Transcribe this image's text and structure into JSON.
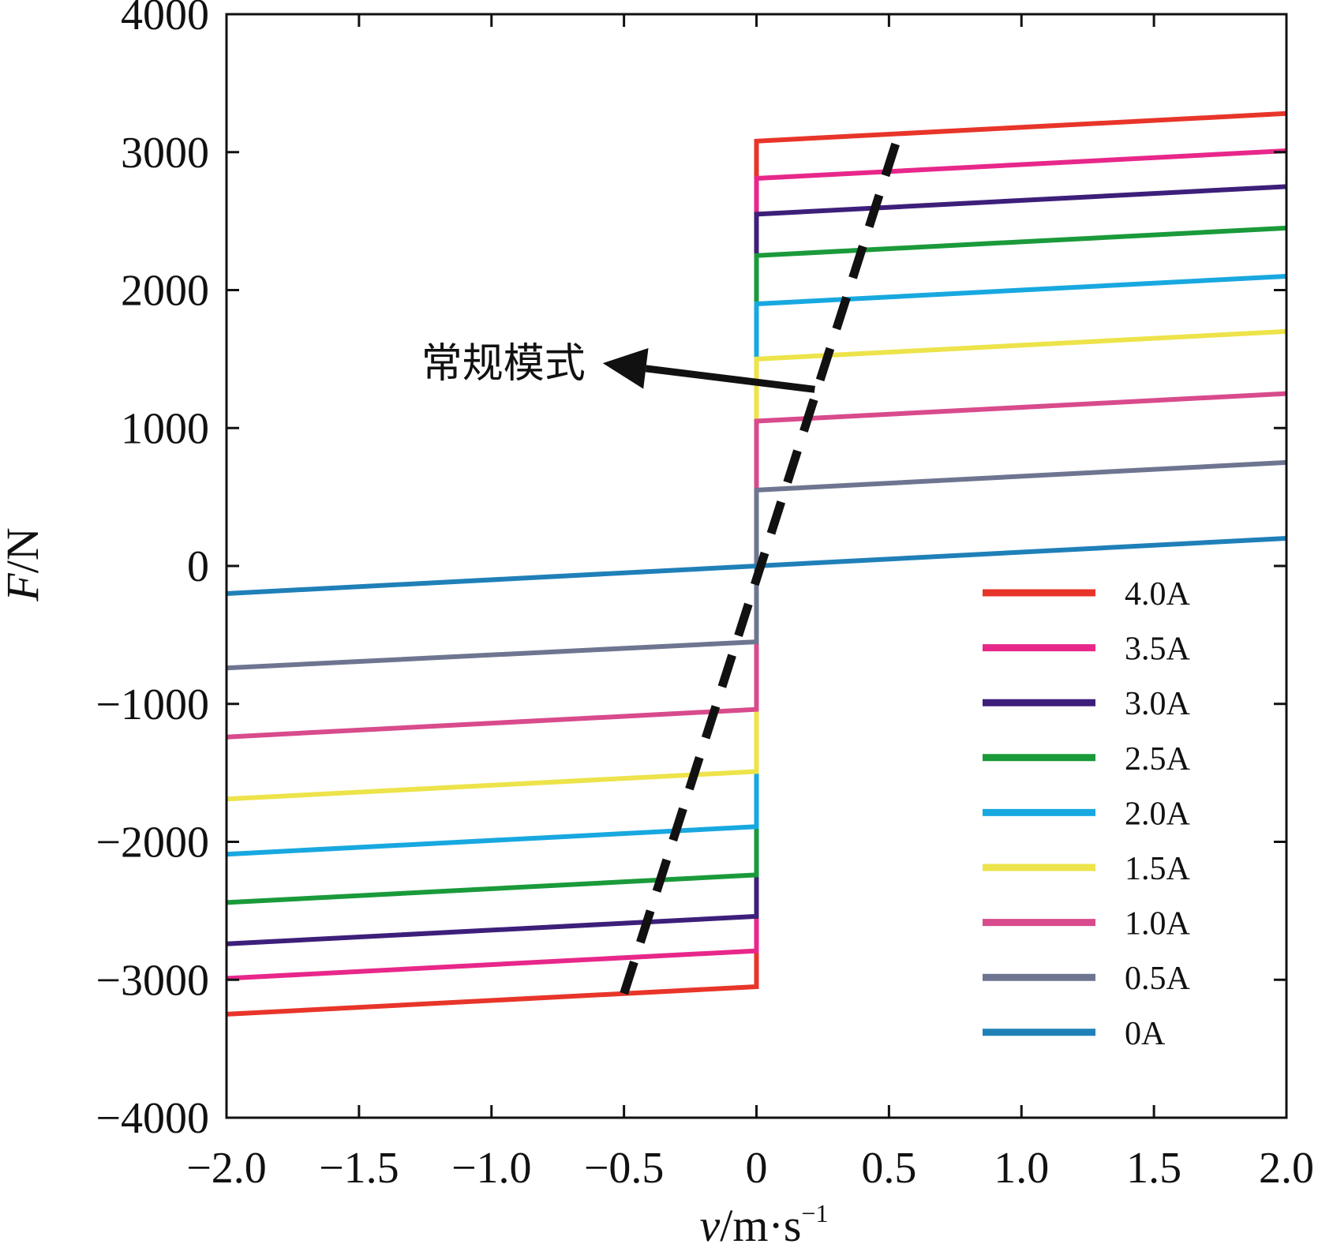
{
  "chart_data": {
    "type": "line",
    "title": "",
    "xlabel": "v/m·s",
    "xlabel_sup": "−1",
    "ylabel": "F/N",
    "xlim": [
      -2.0,
      2.0
    ],
    "ylim": [
      -4000,
      4000
    ],
    "xticks": [
      -2.0,
      -1.5,
      -1.0,
      -0.5,
      0,
      0.5,
      1.0,
      1.5,
      2.0
    ],
    "xtick_labels": [
      "−2.0",
      "−1.5",
      "−1.0",
      "−0.5",
      "0",
      "0.5",
      "1.0",
      "1.5",
      "2.0"
    ],
    "yticks": [
      -4000,
      -3000,
      -2000,
      -1000,
      0,
      1000,
      2000,
      3000,
      4000
    ],
    "ytick_labels": [
      "−4000",
      "−3000",
      "−2000",
      "−1000",
      "0",
      "1000",
      "2000",
      "3000",
      "4000"
    ],
    "grid": false,
    "legend_position": "bottom-right",
    "series": [
      {
        "name": "4.0A",
        "color": "#e8352a",
        "x": [
          -2.0,
          0,
          0,
          2.0
        ],
        "y": [
          -3250,
          -3050,
          3080,
          3280
        ]
      },
      {
        "name": "3.5A",
        "color": "#e8278a",
        "x": [
          -2.0,
          0,
          0,
          2.0
        ],
        "y": [
          -2990,
          -2790,
          2810,
          3010
        ]
      },
      {
        "name": "3.0A",
        "color": "#3d1f7a",
        "x": [
          -2.0,
          0,
          0,
          2.0
        ],
        "y": [
          -2740,
          -2540,
          2550,
          2750
        ]
      },
      {
        "name": "2.5A",
        "color": "#1a9a3a",
        "x": [
          -2.0,
          0,
          0,
          2.0
        ],
        "y": [
          -2440,
          -2240,
          2250,
          2450
        ]
      },
      {
        "name": "2.0A",
        "color": "#18a8e0",
        "x": [
          -2.0,
          0,
          0,
          2.0
        ],
        "y": [
          -2090,
          -1890,
          1900,
          2100
        ]
      },
      {
        "name": "1.5A",
        "color": "#ede34a",
        "x": [
          -2.0,
          0,
          0,
          2.0
        ],
        "y": [
          -1690,
          -1490,
          1500,
          1700
        ]
      },
      {
        "name": "1.0A",
        "color": "#d84b8c",
        "x": [
          -2.0,
          0,
          0,
          2.0
        ],
        "y": [
          -1240,
          -1040,
          1050,
          1250
        ]
      },
      {
        "name": "0.5A",
        "color": "#6e7590",
        "x": [
          -2.0,
          0,
          0,
          2.0
        ],
        "y": [
          -740,
          -550,
          550,
          750
        ]
      },
      {
        "name": "0A",
        "color": "#1f80b8",
        "x": [
          -2.0,
          2.0
        ],
        "y": [
          -200,
          200
        ]
      }
    ],
    "dashed_line": {
      "color": "#111111",
      "x": [
        -0.5,
        0.54
      ],
      "y": [
        -3100,
        3150
      ]
    },
    "annotation": {
      "text": "常规模式",
      "arrow_from": {
        "x": 0.22,
        "y": 1280
      },
      "arrow_to": {
        "x": -0.58,
        "y": 1470
      }
    }
  }
}
